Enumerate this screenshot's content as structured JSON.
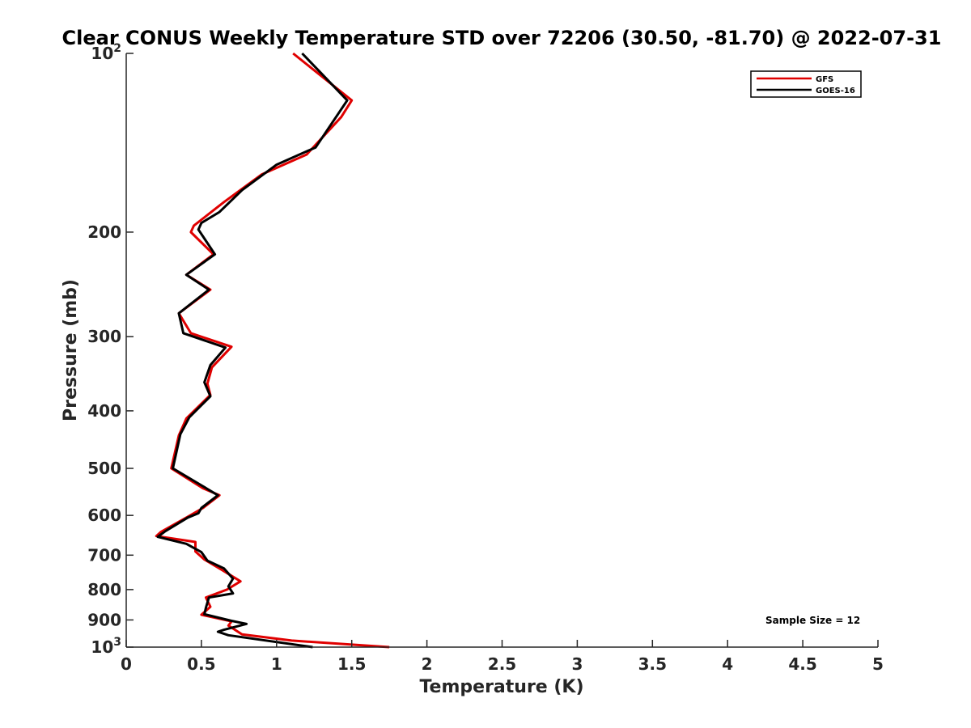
{
  "chart_data": {
    "type": "line",
    "title": "Clear CONUS Weekly Temperature STD over 72206 (30.50, -81.70) @ 2022-07-31",
    "xlabel": "Temperature (K)",
    "ylabel": "Pressure (mb)",
    "xlim": [
      0,
      5
    ],
    "ylim": [
      100,
      1000
    ],
    "yscale": "log",
    "y_reversed": true,
    "x_ticks": [
      "0",
      "0.5",
      "1",
      "1.5",
      "2",
      "2.5",
      "3",
      "3.5",
      "4",
      "4.5",
      "5"
    ],
    "y_ticks": [
      {
        "value": 100,
        "label": "10",
        "sup": "2"
      },
      {
        "value": 200,
        "label": "200",
        "sup": ""
      },
      {
        "value": 300,
        "label": "300",
        "sup": ""
      },
      {
        "value": 400,
        "label": "400",
        "sup": ""
      },
      {
        "value": 500,
        "label": "500",
        "sup": ""
      },
      {
        "value": 600,
        "label": "600",
        "sup": ""
      },
      {
        "value": 700,
        "label": "700",
        "sup": ""
      },
      {
        "value": 800,
        "label": "800",
        "sup": ""
      },
      {
        "value": 900,
        "label": "900",
        "sup": ""
      },
      {
        "value": 1000,
        "label": "10",
        "sup": "3"
      }
    ],
    "grid": false,
    "legend_position": "top-right",
    "series": [
      {
        "name": "GFS",
        "color": "#e00000",
        "points": [
          [
            1.11,
            100
          ],
          [
            1.5,
            120
          ],
          [
            1.43,
            128
          ],
          [
            1.2,
            148
          ],
          [
            0.9,
            160
          ],
          [
            0.65,
            178
          ],
          [
            0.45,
            195
          ],
          [
            0.43,
            200
          ],
          [
            0.58,
            218
          ],
          [
            0.4,
            236
          ],
          [
            0.56,
            250
          ],
          [
            0.35,
            274
          ],
          [
            0.43,
            296
          ],
          [
            0.7,
            312
          ],
          [
            0.57,
            338
          ],
          [
            0.54,
            360
          ],
          [
            0.56,
            376
          ],
          [
            0.4,
            412
          ],
          [
            0.35,
            440
          ],
          [
            0.3,
            500
          ],
          [
            0.51,
            540
          ],
          [
            0.62,
            555
          ],
          [
            0.51,
            583
          ],
          [
            0.41,
            603
          ],
          [
            0.23,
            640
          ],
          [
            0.2,
            650
          ],
          [
            0.46,
            665
          ],
          [
            0.46,
            690
          ],
          [
            0.52,
            712
          ],
          [
            0.64,
            742
          ],
          [
            0.76,
            775
          ],
          [
            0.67,
            800
          ],
          [
            0.53,
            825
          ],
          [
            0.56,
            855
          ],
          [
            0.5,
            882
          ],
          [
            0.7,
            905
          ],
          [
            0.68,
            920
          ],
          [
            0.77,
            952
          ],
          [
            1.1,
            975
          ],
          [
            1.75,
            1000
          ]
        ]
      },
      {
        "name": "GOES-16",
        "color": "#000000",
        "points": [
          [
            1.17,
            100
          ],
          [
            1.47,
            120
          ],
          [
            1.26,
            144
          ],
          [
            1.0,
            154
          ],
          [
            0.77,
            170
          ],
          [
            0.62,
            185
          ],
          [
            0.5,
            193
          ],
          [
            0.48,
            198
          ],
          [
            0.59,
            218
          ],
          [
            0.4,
            236
          ],
          [
            0.55,
            250
          ],
          [
            0.35,
            274
          ],
          [
            0.38,
            296
          ],
          [
            0.66,
            313
          ],
          [
            0.56,
            335
          ],
          [
            0.52,
            358
          ],
          [
            0.56,
            378
          ],
          [
            0.42,
            410
          ],
          [
            0.36,
            438
          ],
          [
            0.31,
            500
          ],
          [
            0.5,
            534
          ],
          [
            0.61,
            555
          ],
          [
            0.5,
            583
          ],
          [
            0.48,
            595
          ],
          [
            0.41,
            605
          ],
          [
            0.26,
            638
          ],
          [
            0.21,
            652
          ],
          [
            0.4,
            670
          ],
          [
            0.5,
            692
          ],
          [
            0.54,
            715
          ],
          [
            0.65,
            737
          ],
          [
            0.71,
            767
          ],
          [
            0.68,
            790
          ],
          [
            0.71,
            812
          ],
          [
            0.55,
            825
          ],
          [
            0.53,
            858
          ],
          [
            0.52,
            880
          ],
          [
            0.7,
            903
          ],
          [
            0.8,
            914
          ],
          [
            0.65,
            935
          ],
          [
            0.61,
            942
          ],
          [
            0.68,
            955
          ],
          [
            1.24,
            1000
          ]
        ]
      }
    ],
    "annotations": [
      {
        "text": "Sample Size = 12"
      }
    ]
  }
}
